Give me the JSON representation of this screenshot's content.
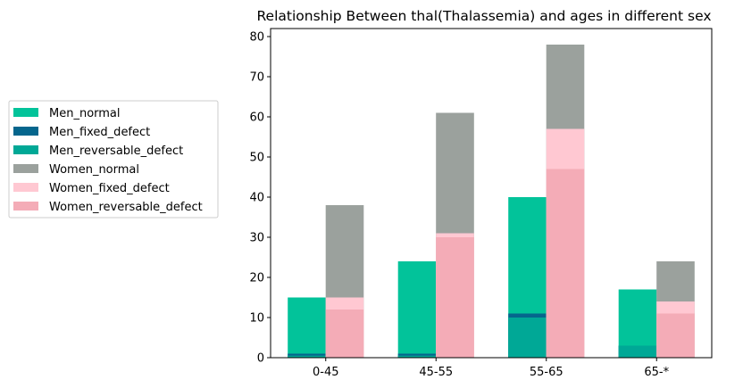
{
  "chart_data": {
    "type": "bar",
    "title": "Relationship Between thal(Thalassemia) and ages in different sex",
    "xlabel": "",
    "ylabel": "",
    "categories": [
      "0-45",
      "45-55",
      "55-65",
      "65-*"
    ],
    "ylim": [
      0,
      82
    ],
    "yticks": [
      0,
      10,
      20,
      30,
      40,
      50,
      60,
      70,
      80
    ],
    "grid": false,
    "legend_position": "left, outside plot",
    "series": [
      {
        "name": "Men_normal",
        "group": "Men",
        "color": "#02c39a",
        "values": [
          15,
          24,
          40,
          17
        ]
      },
      {
        "name": "Men_fixed_defect",
        "group": "Men",
        "color": "#05668d",
        "values": [
          1,
          1,
          11,
          3
        ]
      },
      {
        "name": "Men_reversable_defect",
        "group": "Men",
        "color": "#00a896",
        "values": [
          0.5,
          0.5,
          10,
          3
        ]
      },
      {
        "name": "Women_normal",
        "group": "Women",
        "color": "#9ba19d",
        "values": [
          38,
          61,
          78,
          24
        ]
      },
      {
        "name": "Women_fixed_defect",
        "group": "Women",
        "color": "#ffc8d2",
        "values": [
          15,
          31,
          57,
          14
        ]
      },
      {
        "name": "Women_reversable_defect",
        "group": "Women",
        "color": "#f4acb7",
        "values": [
          12,
          30,
          47,
          11
        ]
      }
    ]
  }
}
